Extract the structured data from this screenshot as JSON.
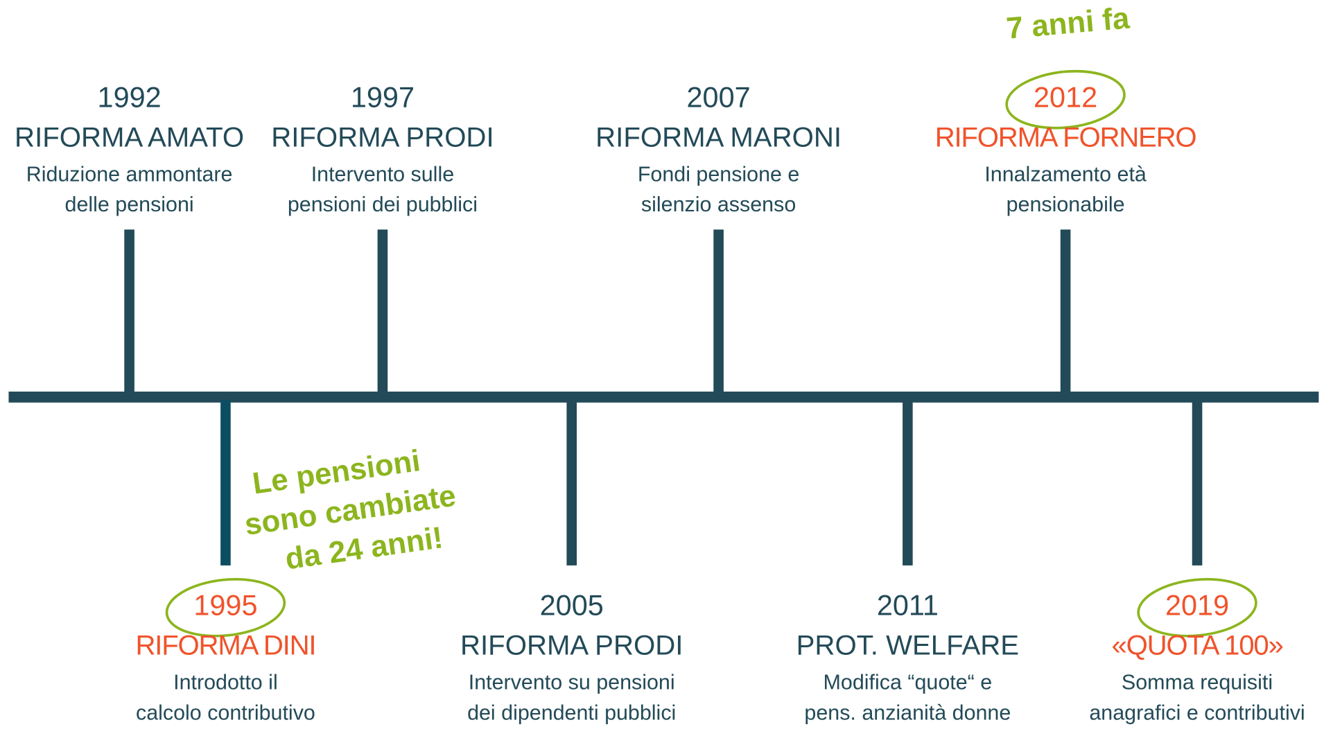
{
  "events": [
    {
      "year": "1992",
      "title": "RIFORMA AMATO",
      "description": [
        "Riduzione ammontare",
        "delle pensioni"
      ],
      "color": "#234a58",
      "circled": false
    },
    {
      "year": "1995",
      "title": "RIFORMA DINI",
      "description": [
        "Introdotto il",
        "calcolo contributivo"
      ],
      "color": "#f0532b",
      "circled": true
    },
    {
      "year": "1997",
      "title": "RIFORMA PRODI",
      "description": [
        "Intervento sulle",
        "pensioni dei pubblici"
      ],
      "color": "#234a58",
      "circled": false
    },
    {
      "year": "2005",
      "title": "RIFORMA PRODI",
      "description": [
        "Intervento su pensioni",
        "dei dipendenti pubblici"
      ],
      "color": "#234a58",
      "circled": false
    },
    {
      "year": "2007",
      "title": "RIFORMA MARONI",
      "description": [
        "Fondi pensione e",
        "silenzio assenso"
      ],
      "color": "#234a58",
      "circled": false
    },
    {
      "year": "2011",
      "title": "PROT. WELFARE",
      "description": [
        "Modifica “quote“ e",
        "pens. anzianità donne"
      ],
      "color": "#234a58",
      "circled": false
    },
    {
      "year": "2012",
      "title": "RIFORMA FORNERO",
      "description": [
        "Innalzamento età",
        "pensionabile"
      ],
      "color": "#f0532b",
      "circled": true
    },
    {
      "year": "2019",
      "title": "«QUOTA 100»",
      "description": [
        "Somma requisiti",
        "anagrafici e contributivi"
      ],
      "color": "#f0532b",
      "circled": true
    }
  ],
  "annotations": [
    {
      "lines": [
        "7 anni fa"
      ]
    },
    {
      "lines": [
        "Le pensioni",
        "sono cambiate",
        "da 24 anni!"
      ]
    }
  ]
}
